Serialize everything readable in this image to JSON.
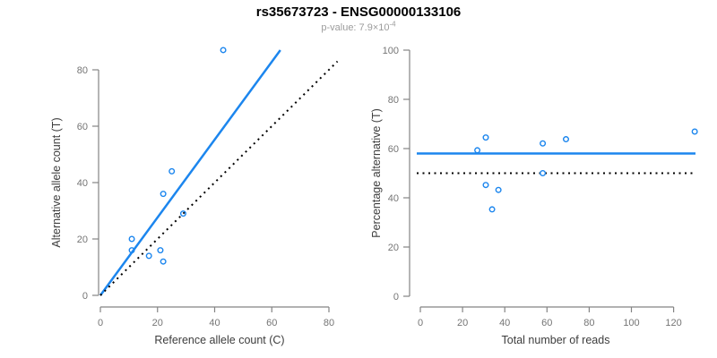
{
  "header": {
    "title": "rs35673723 - ENSG00000133106",
    "pvalue_base": "p-value: 7.9×10",
    "pvalue_exponent": "-4"
  },
  "colors": {
    "blue": "#1C86EE",
    "black": "#000000",
    "axis_line": "#848484",
    "tick_label": "#757575",
    "axis_title": "#3d3d3d",
    "title": "#000000",
    "subtitle": "#9c9c9c"
  },
  "chart_data": [
    {
      "type": "scatter",
      "xlabel": "Reference allele count (C)",
      "ylabel": "Alternative allele count (T)",
      "xticks": [
        0,
        20,
        40,
        60,
        80
      ],
      "yticks": [
        0,
        20,
        40,
        60,
        80
      ],
      "xlim": [
        0,
        83
      ],
      "ylim": [
        0,
        87
      ],
      "grid": false,
      "legend": "none",
      "points": [
        [
          43,
          87
        ],
        [
          25,
          44
        ],
        [
          22,
          36
        ],
        [
          29,
          29
        ],
        [
          11,
          20
        ],
        [
          11,
          16
        ],
        [
          17,
          14
        ],
        [
          21,
          16
        ],
        [
          22,
          12
        ]
      ],
      "lines": [
        {
          "name": "fit-line",
          "kind": "segment",
          "style": "solid",
          "color_key": "blue",
          "x1": 0,
          "y1": 0,
          "x2": 63,
          "y2": 87
        },
        {
          "name": "identity-line",
          "kind": "segment",
          "style": "dotted",
          "color_key": "black",
          "x1": 0,
          "y1": 0,
          "x2": 83,
          "y2": 83
        }
      ]
    },
    {
      "type": "scatter",
      "xlabel": "Total number of reads",
      "ylabel": "Percentage alternative (T)",
      "xticks": [
        0,
        20,
        40,
        60,
        80,
        100,
        120
      ],
      "yticks": [
        0,
        20,
        40,
        60,
        80,
        100
      ],
      "xlim": [
        0,
        130
      ],
      "ylim": [
        0,
        100
      ],
      "grid": false,
      "legend": "none",
      "points": [
        [
          27,
          59.3
        ],
        [
          31,
          64.5
        ],
        [
          31,
          45.2
        ],
        [
          34,
          35.3
        ],
        [
          37,
          43.2
        ],
        [
          58,
          62.1
        ],
        [
          58,
          50
        ],
        [
          69,
          63.8
        ],
        [
          130,
          66.9
        ]
      ],
      "lines": [
        {
          "name": "mean-percentage-line",
          "kind": "hline",
          "style": "solid",
          "color_key": "blue",
          "y": 58
        },
        {
          "name": "null-expectation-line",
          "kind": "hline",
          "style": "dotted",
          "color_key": "black",
          "y": 50
        }
      ]
    }
  ]
}
